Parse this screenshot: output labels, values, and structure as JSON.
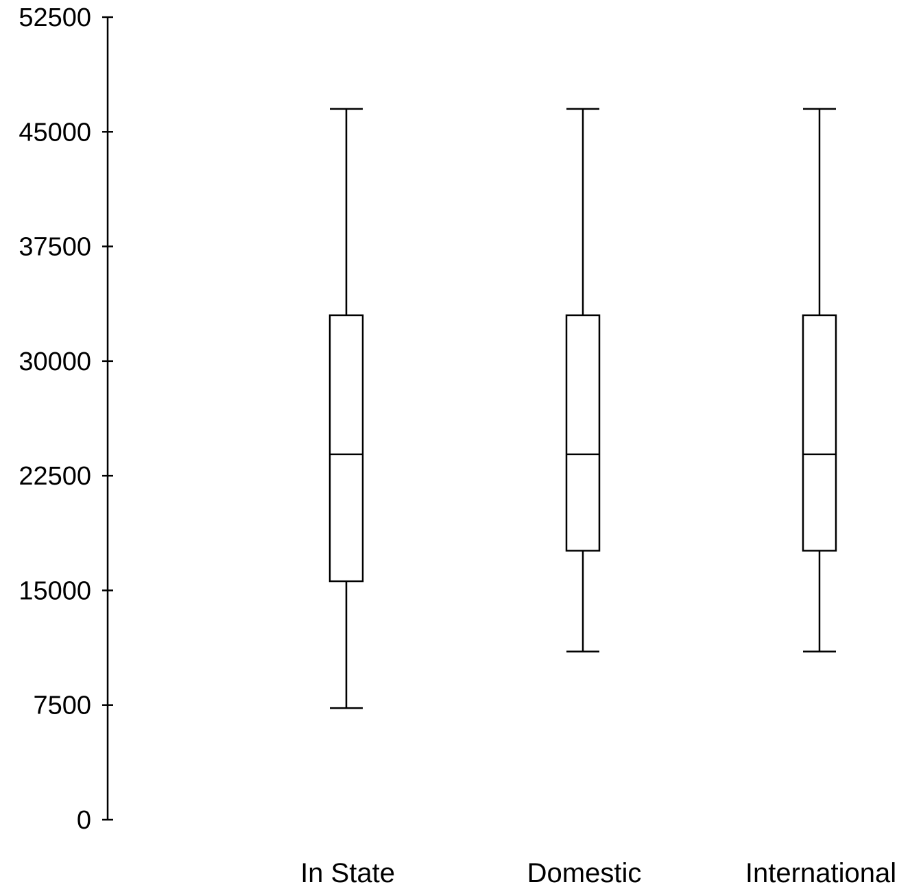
{
  "chart_data": {
    "type": "box",
    "title": "",
    "xlabel": "",
    "ylabel": "",
    "ylim": [
      0,
      52500
    ],
    "yticks": [
      0,
      7500,
      15000,
      22500,
      30000,
      37500,
      45000,
      52500
    ],
    "ytick_labels": [
      "0",
      "7500",
      "15000",
      "22500",
      "30000",
      "37500",
      "45000",
      "52500"
    ],
    "grid": false,
    "categories": [
      "In State",
      "Domestic",
      "International"
    ],
    "boxes": [
      {
        "category": "In State",
        "whisker_low": 7300,
        "q1": 15600,
        "median": 23900,
        "q3": 33000,
        "whisker_high": 46500
      },
      {
        "category": "Domestic",
        "whisker_low": 11000,
        "q1": 17600,
        "median": 23900,
        "q3": 33000,
        "whisker_high": 46500
      },
      {
        "category": "International",
        "whisker_low": 11000,
        "q1": 17600,
        "median": 23900,
        "q3": 33000,
        "whisker_high": 46500
      }
    ],
    "colors": {
      "stroke": "#000000",
      "fill": "#ffffff"
    }
  }
}
